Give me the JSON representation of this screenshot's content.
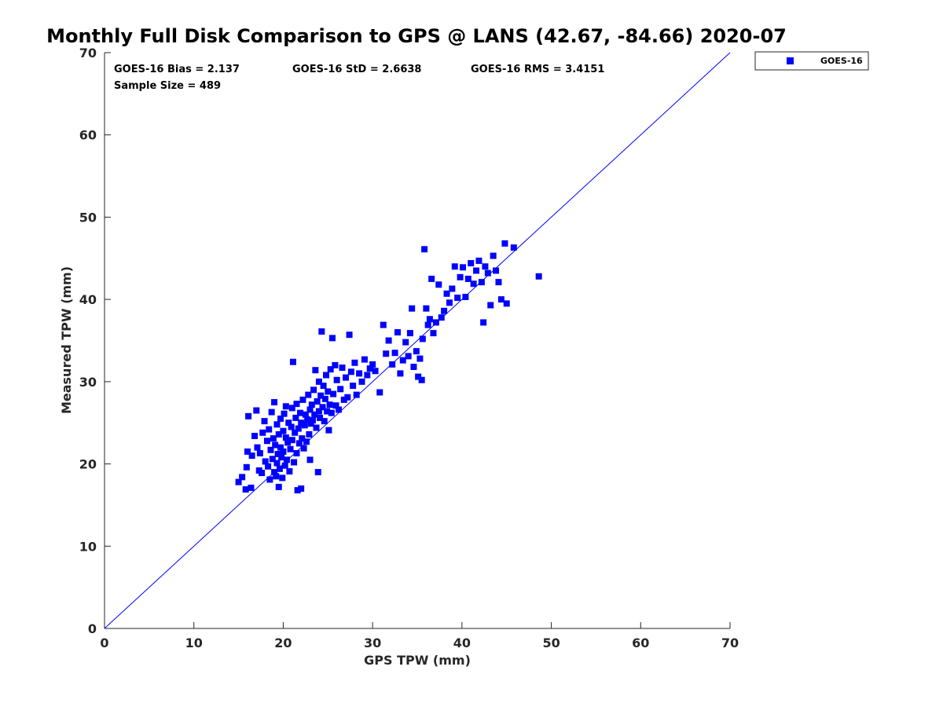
{
  "chart_data": {
    "type": "scatter",
    "title": "Monthly Full Disk Comparison to GPS @ LANS (42.67, -84.66) 2020-07",
    "xlabel": "GPS TPW (mm)",
    "ylabel": "Measured TPW (mm)",
    "xlim": [
      0,
      70
    ],
    "ylim": [
      0,
      70
    ],
    "xticks": [
      "0",
      "10",
      "20",
      "30",
      "40",
      "50",
      "60",
      "70"
    ],
    "yticks": [
      "0",
      "10",
      "20",
      "30",
      "40",
      "50",
      "60",
      "70"
    ],
    "grid": false,
    "legend_position": "outside-top-right",
    "stats": {
      "bias": "GOES-16 Bias = 2.137",
      "std": "GOES-16 StD = 2.6638",
      "rms": "GOES-16 RMS = 3.4151",
      "sample_size": "Sample Size = 489"
    },
    "reference_line": {
      "x": [
        0,
        70
      ],
      "y": [
        0,
        70
      ],
      "color": "#0000ff"
    },
    "series": [
      {
        "name": "GOES-16",
        "color": "#0000ff",
        "marker": "square",
        "points": [
          [
            15.0,
            17.8
          ],
          [
            15.4,
            18.4
          ],
          [
            15.8,
            16.9
          ],
          [
            15.9,
            19.6
          ],
          [
            16.0,
            21.5
          ],
          [
            16.1,
            25.8
          ],
          [
            16.4,
            17.1
          ],
          [
            16.5,
            21.0
          ],
          [
            16.8,
            23.4
          ],
          [
            17.0,
            26.5
          ],
          [
            17.1,
            22.0
          ],
          [
            17.3,
            19.2
          ],
          [
            17.4,
            21.3
          ],
          [
            17.6,
            18.9
          ],
          [
            17.7,
            23.8
          ],
          [
            17.9,
            25.2
          ],
          [
            18.0,
            20.3
          ],
          [
            18.2,
            22.8
          ],
          [
            18.3,
            19.7
          ],
          [
            18.4,
            24.2
          ],
          [
            18.5,
            18.1
          ],
          [
            18.6,
            21.7
          ],
          [
            18.7,
            26.3
          ],
          [
            18.8,
            20.6
          ],
          [
            18.9,
            23.1
          ],
          [
            19.0,
            19.0
          ],
          [
            19.0,
            27.5
          ],
          [
            19.1,
            22.3
          ],
          [
            19.2,
            18.5
          ],
          [
            19.3,
            24.8
          ],
          [
            19.3,
            20.1
          ],
          [
            19.4,
            21.2
          ],
          [
            19.5,
            17.2
          ],
          [
            19.5,
            23.6
          ],
          [
            19.6,
            19.4
          ],
          [
            19.7,
            25.5
          ],
          [
            19.7,
            22.0
          ],
          [
            19.8,
            20.8
          ],
          [
            19.9,
            18.3
          ],
          [
            20.0,
            24.0
          ],
          [
            20.0,
            21.5
          ],
          [
            20.1,
            26.1
          ],
          [
            20.2,
            19.8
          ],
          [
            20.3,
            23.2
          ],
          [
            20.3,
            27.0
          ],
          [
            20.4,
            20.5
          ],
          [
            20.5,
            22.6
          ],
          [
            20.6,
            25.0
          ],
          [
            20.7,
            19.1
          ],
          [
            20.8,
            21.8
          ],
          [
            20.9,
            24.5
          ],
          [
            21.0,
            26.8
          ],
          [
            21.0,
            22.9
          ],
          [
            21.1,
            32.4
          ],
          [
            21.2,
            20.2
          ],
          [
            21.3,
            23.8
          ],
          [
            21.4,
            25.6
          ],
          [
            21.5,
            21.3
          ],
          [
            21.5,
            27.3
          ],
          [
            21.6,
            16.8
          ],
          [
            21.7,
            24.3
          ],
          [
            21.8,
            22.5
          ],
          [
            21.9,
            26.2
          ],
          [
            22.0,
            17.0
          ],
          [
            22.0,
            25.0
          ],
          [
            22.1,
            23.1
          ],
          [
            22.2,
            27.8
          ],
          [
            22.3,
            21.9
          ],
          [
            22.4,
            24.7
          ],
          [
            22.5,
            26.0
          ],
          [
            22.6,
            22.7
          ],
          [
            22.7,
            25.4
          ],
          [
            22.8,
            28.4
          ],
          [
            22.9,
            23.6
          ],
          [
            23.0,
            26.6
          ],
          [
            23.0,
            20.5
          ],
          [
            23.1,
            24.9
          ],
          [
            23.2,
            27.2
          ],
          [
            23.3,
            25.3
          ],
          [
            23.4,
            29.0
          ],
          [
            23.5,
            26.0
          ],
          [
            23.6,
            31.4
          ],
          [
            23.7,
            24.4
          ],
          [
            23.8,
            27.6
          ],
          [
            23.9,
            19.0
          ],
          [
            24.0,
            26.4
          ],
          [
            24.0,
            30.0
          ],
          [
            24.1,
            25.6
          ],
          [
            24.2,
            28.3
          ],
          [
            24.3,
            36.1
          ],
          [
            24.4,
            26.9
          ],
          [
            24.5,
            29.5
          ],
          [
            24.6,
            25.2
          ],
          [
            24.7,
            27.9
          ],
          [
            24.8,
            30.8
          ],
          [
            24.9,
            26.4
          ],
          [
            25.0,
            28.8
          ],
          [
            25.1,
            24.1
          ],
          [
            25.2,
            27.2
          ],
          [
            25.3,
            31.5
          ],
          [
            25.4,
            26.2
          ],
          [
            25.5,
            35.3
          ],
          [
            25.6,
            28.5
          ],
          [
            25.8,
            32.0
          ],
          [
            25.9,
            27.1
          ],
          [
            26.0,
            30.2
          ],
          [
            26.2,
            26.6
          ],
          [
            26.4,
            29.1
          ],
          [
            26.6,
            31.7
          ],
          [
            26.8,
            27.8
          ],
          [
            27.0,
            30.5
          ],
          [
            27.2,
            28.1
          ],
          [
            27.4,
            35.7
          ],
          [
            27.6,
            31.2
          ],
          [
            27.8,
            29.5
          ],
          [
            28.0,
            32.3
          ],
          [
            28.2,
            28.4
          ],
          [
            28.5,
            31.0
          ],
          [
            28.8,
            30.0
          ],
          [
            29.1,
            32.7
          ],
          [
            29.4,
            30.8
          ],
          [
            29.7,
            31.6
          ],
          [
            30.0,
            32.1
          ],
          [
            30.3,
            31.3
          ],
          [
            30.8,
            28.7
          ],
          [
            31.2,
            36.9
          ],
          [
            31.5,
            33.4
          ],
          [
            31.8,
            35.0
          ],
          [
            32.2,
            32.1
          ],
          [
            32.5,
            33.5
          ],
          [
            32.8,
            36.0
          ],
          [
            33.1,
            31.0
          ],
          [
            33.4,
            32.6
          ],
          [
            33.7,
            34.8
          ],
          [
            34.0,
            33.1
          ],
          [
            34.2,
            35.9
          ],
          [
            34.4,
            38.9
          ],
          [
            34.6,
            31.8
          ],
          [
            34.9,
            33.7
          ],
          [
            35.1,
            30.6
          ],
          [
            35.3,
            32.8
          ],
          [
            35.5,
            30.2
          ],
          [
            35.6,
            35.2
          ],
          [
            35.8,
            46.1
          ],
          [
            36.0,
            38.9
          ],
          [
            36.2,
            36.9
          ],
          [
            36.4,
            37.6
          ],
          [
            36.6,
            42.5
          ],
          [
            36.8,
            35.9
          ],
          [
            37.1,
            37.2
          ],
          [
            37.4,
            41.8
          ],
          [
            37.7,
            37.8
          ],
          [
            38.0,
            38.6
          ],
          [
            38.3,
            40.7
          ],
          [
            38.6,
            39.6
          ],
          [
            38.9,
            41.3
          ],
          [
            39.2,
            44.0
          ],
          [
            39.5,
            40.2
          ],
          [
            39.8,
            42.7
          ],
          [
            40.1,
            43.9
          ],
          [
            40.4,
            40.3
          ],
          [
            40.7,
            42.5
          ],
          [
            41.0,
            44.4
          ],
          [
            41.3,
            41.9
          ],
          [
            41.6,
            43.5
          ],
          [
            41.9,
            44.7
          ],
          [
            42.2,
            42.1
          ],
          [
            42.4,
            37.2
          ],
          [
            42.6,
            44.0
          ],
          [
            42.9,
            43.2
          ],
          [
            43.2,
            39.3
          ],
          [
            43.5,
            45.3
          ],
          [
            43.8,
            43.5
          ],
          [
            44.1,
            42.1
          ],
          [
            44.4,
            40.0
          ],
          [
            44.8,
            46.8
          ],
          [
            45.0,
            39.5
          ],
          [
            45.8,
            46.3
          ],
          [
            48.6,
            42.8
          ]
        ]
      }
    ]
  }
}
